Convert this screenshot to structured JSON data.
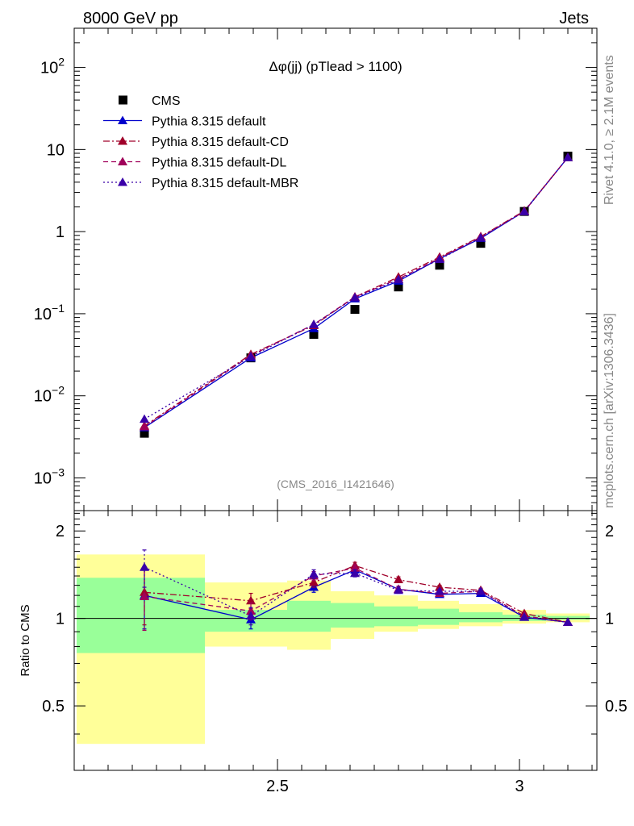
{
  "header": {
    "left": "8000 GeV pp",
    "right": "Jets"
  },
  "side_labels": {
    "rivet": "Rivet 4.1.0, ≥ 2.1M events",
    "mcplots": "mcplots.cern.ch [arXiv:1306.3436]"
  },
  "colors": {
    "data": "#000000",
    "default": "#0000cc",
    "default_cd": "#a0002a",
    "default_dl": "#a0005a",
    "default_mbr": "#3a00a8",
    "band_inner": "#99ff99",
    "band_outer": "#ffff99"
  },
  "chart_data": [
    {
      "id": "main",
      "type": "scatter",
      "title": "Δφ(jj) (pTlead >  1100)",
      "watermark": "(CMS_2016_I1421646)",
      "yscale": "log",
      "xlim": [
        2.08,
        3.16
      ],
      "ylim": [
        0.0004,
        300
      ],
      "yticks": [
        {
          "value": 0.001,
          "base": "10",
          "exp": "−3"
        },
        {
          "value": 0.01,
          "base": "10",
          "exp": "−2"
        },
        {
          "value": 0.1,
          "base": "10",
          "exp": "−1"
        },
        {
          "value": 1,
          "base": "1",
          "exp": ""
        },
        {
          "value": 10,
          "base": "10",
          "exp": ""
        },
        {
          "value": 100,
          "base": "10",
          "exp": "2"
        }
      ],
      "x": [
        2.225,
        2.445,
        2.575,
        2.66,
        2.75,
        2.835,
        2.92,
        3.01,
        3.1
      ],
      "series": [
        {
          "name": "CMS",
          "key": "data",
          "style": "marker",
          "values": [
            0.0035,
            0.029,
            0.056,
            0.113,
            0.212,
            0.39,
            0.72,
            1.76,
            8.3
          ]
        },
        {
          "name": "Pythia 8.315 default",
          "key": "default",
          "style": "solid",
          "values": [
            0.0041,
            0.029,
            0.066,
            0.152,
            0.25,
            0.47,
            0.83,
            1.77,
            8.0
          ]
        },
        {
          "name": "Pythia 8.315 default-CD",
          "key": "default_cd",
          "style": "dashdot",
          "values": [
            0.0043,
            0.032,
            0.072,
            0.16,
            0.28,
            0.49,
            0.87,
            1.79,
            8.0
          ]
        },
        {
          "name": "Pythia 8.315 default-DL",
          "key": "default_dl",
          "style": "dashed",
          "values": [
            0.0042,
            0.031,
            0.074,
            0.16,
            0.265,
            0.475,
            0.86,
            1.76,
            8.0
          ]
        },
        {
          "name": "Pythia 8.315 default-MBR",
          "key": "default_mbr",
          "style": "dotted",
          "values": [
            0.0052,
            0.03,
            0.074,
            0.157,
            0.26,
            0.46,
            0.84,
            1.75,
            8.0
          ]
        }
      ],
      "legend_position": "top-left"
    },
    {
      "id": "ratio",
      "type": "scatter",
      "ylabel": "Ratio to CMS",
      "xlim": [
        2.08,
        3.16
      ],
      "ylim": [
        0.3,
        2.35
      ],
      "xticks": [
        {
          "value": 2.5,
          "label": "2.5"
        },
        {
          "value": 3.0,
          "label": "3"
        }
      ],
      "yticks": [
        {
          "value": 0.5,
          "label": "0.5"
        },
        {
          "value": 1,
          "label": "1"
        },
        {
          "value": 2,
          "label": "2"
        }
      ],
      "bands": [
        {
          "x_low": 2.085,
          "x_high": 2.35,
          "inner": [
            0.76,
            1.38
          ],
          "outer": [
            0.37,
            1.66
          ]
        },
        {
          "x_low": 2.35,
          "x_high": 2.52,
          "inner": [
            0.9,
            1.07
          ],
          "outer": [
            0.8,
            1.33
          ]
        },
        {
          "x_low": 2.52,
          "x_high": 2.61,
          "inner": [
            0.9,
            1.15
          ],
          "outer": [
            0.78,
            1.35
          ]
        },
        {
          "x_low": 2.61,
          "x_high": 2.7,
          "inner": [
            0.93,
            1.13
          ],
          "outer": [
            0.85,
            1.24
          ]
        },
        {
          "x_low": 2.7,
          "x_high": 2.79,
          "inner": [
            0.94,
            1.1
          ],
          "outer": [
            0.9,
            1.2
          ]
        },
        {
          "x_low": 2.79,
          "x_high": 2.875,
          "inner": [
            0.95,
            1.08
          ],
          "outer": [
            0.92,
            1.15
          ]
        },
        {
          "x_low": 2.875,
          "x_high": 2.965,
          "inner": [
            0.97,
            1.05
          ],
          "outer": [
            0.94,
            1.12
          ]
        },
        {
          "x_low": 2.965,
          "x_high": 3.055,
          "inner": [
            0.98,
            1.03
          ],
          "outer": [
            0.96,
            1.07
          ]
        },
        {
          "x_low": 3.055,
          "x_high": 3.145,
          "inner": [
            0.99,
            1.02
          ],
          "outer": [
            0.97,
            1.04
          ]
        }
      ],
      "x": [
        2.225,
        2.445,
        2.575,
        2.66,
        2.75,
        2.835,
        2.92,
        3.01,
        3.1
      ],
      "series": [
        {
          "name": "Pythia 8.315 default",
          "key": "default",
          "style": "solid",
          "values": [
            1.2,
            0.99,
            1.28,
            1.47,
            1.26,
            1.21,
            1.22,
            1.01,
            0.97
          ],
          "errors": [
            0.28,
            0.07,
            0.05,
            0.04,
            0.03,
            0.02,
            0.02,
            0.01,
            0.01
          ]
        },
        {
          "name": "Pythia 8.315 default-CD",
          "key": "default_cd",
          "style": "dashdot",
          "values": [
            1.23,
            1.15,
            1.33,
            1.52,
            1.36,
            1.28,
            1.25,
            1.04,
            0.97
          ],
          "errors": [
            0.28,
            0.07,
            0.05,
            0.04,
            0.03,
            0.02,
            0.02,
            0.01,
            0.01
          ]
        },
        {
          "name": "Pythia 8.315 default-DL",
          "key": "default_dl",
          "style": "dashed",
          "values": [
            1.19,
            1.06,
            1.4,
            1.49,
            1.26,
            1.22,
            1.24,
            1.02,
            0.97
          ],
          "errors": [
            0.28,
            0.07,
            0.05,
            0.04,
            0.03,
            0.02,
            0.02,
            0.01,
            0.01
          ]
        },
        {
          "name": "Pythia 8.315 default-MBR",
          "key": "default_mbr",
          "style": "dotted",
          "values": [
            1.5,
            1.02,
            1.42,
            1.43,
            1.25,
            1.24,
            1.24,
            1.01,
            0.97
          ],
          "errors": [
            0.22,
            0.07,
            0.05,
            0.04,
            0.03,
            0.02,
            0.02,
            0.01,
            0.01
          ]
        }
      ]
    }
  ]
}
